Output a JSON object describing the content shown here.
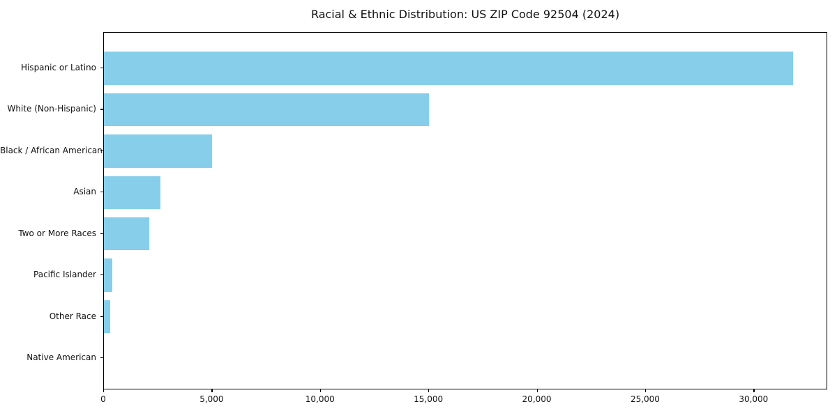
{
  "chart_data": {
    "type": "bar",
    "orientation": "horizontal",
    "title": "Racial & Ethnic Distribution: US ZIP Code 92504 (2024)",
    "categories": [
      "Hispanic or Latino",
      "White (Non-Hispanic)",
      "Black / African American",
      "Asian",
      "Two or More Races",
      "Pacific Islander",
      "Other Race",
      "Native American"
    ],
    "values": [
      31800,
      15000,
      5000,
      2600,
      2100,
      400,
      300,
      0
    ],
    "xlabel": "",
    "ylabel": "",
    "xlim": [
      0,
      33400
    ],
    "x_ticks": [
      0,
      5000,
      10000,
      15000,
      20000,
      25000,
      30000
    ],
    "x_tick_labels": [
      "0",
      "5,000",
      "10,000",
      "15,000",
      "20,000",
      "25,000",
      "30,000"
    ],
    "bar_color": "#87CEEB",
    "background": "#FFFFFF",
    "text_color": "#111111",
    "spine_color": "#000000",
    "grid": "off",
    "legend": "none"
  }
}
